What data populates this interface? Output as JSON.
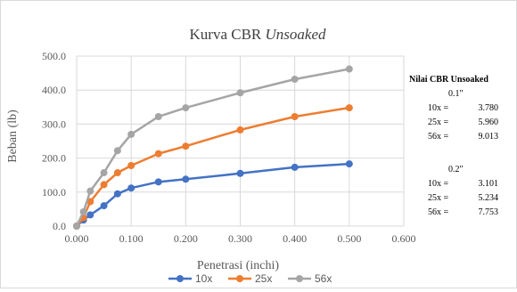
{
  "chart_data": {
    "type": "line",
    "title": "Kurva CBR ",
    "title_italic": "Unsoaked",
    "xlabel": "Penetrasi (inchi)",
    "ylabel": "Beban (lb)",
    "xlim": [
      0.0,
      0.6
    ],
    "ylim": [
      0.0,
      500.0
    ],
    "x_ticks": [
      "0.000",
      "0.100",
      "0.200",
      "0.300",
      "0.400",
      "0.500",
      "0.600"
    ],
    "y_ticks": [
      "0.0",
      "100.0",
      "200.0",
      "300.0",
      "400.0",
      "500.0"
    ],
    "grid": true,
    "legend_position": "bottom",
    "x": [
      0.0,
      0.0125,
      0.025,
      0.05,
      0.075,
      0.1,
      0.15,
      0.2,
      0.3,
      0.4,
      0.5
    ],
    "series": [
      {
        "name": "10x",
        "color": "#4472C4",
        "values": [
          0,
          18,
          33,
          60,
          95,
          112,
          130,
          138,
          155,
          173,
          183
        ]
      },
      {
        "name": "25x",
        "color": "#ED7D31",
        "values": [
          0,
          25,
          72,
          122,
          157,
          178,
          213,
          235,
          283,
          322,
          348
        ]
      },
      {
        "name": "56x",
        "color": "#A5A5A5",
        "values": [
          0,
          42,
          103,
          157,
          222,
          270,
          322,
          348,
          392,
          432,
          462
        ]
      }
    ]
  },
  "side_panel": {
    "title": "Nilai CBR Unsoaked",
    "groups": [
      {
        "heading": "0.1\"",
        "rows": [
          {
            "label": "10x =",
            "value": "3.780"
          },
          {
            "label": "25x =",
            "value": "5.960"
          },
          {
            "label": "56x =",
            "value": "9.013"
          }
        ]
      },
      {
        "heading": "0.2\"",
        "rows": [
          {
            "label": "10x =",
            "value": "3.101"
          },
          {
            "label": "25x =",
            "value": "5.234"
          },
          {
            "label": "56x =",
            "value": "7.753"
          }
        ]
      }
    ]
  }
}
